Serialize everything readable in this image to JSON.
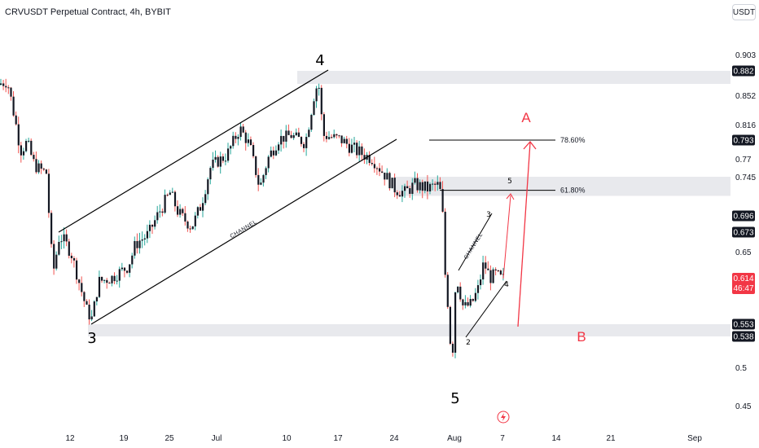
{
  "header": {
    "title": "CRVUSDT Perpetual Contract, 4h, BYBIT",
    "currency": "USDT"
  },
  "chart_data": {
    "type": "candlestick",
    "title": "CRVUSDT Perpetual Contract, 4h, BYBIT",
    "x_ticks": [
      "12",
      "19",
      "25",
      "Jul",
      "10",
      "17",
      "24",
      "Aug",
      "7",
      "14",
      "21",
      "Sep"
    ],
    "y_ticks": [
      0.903,
      0.852,
      0.816,
      0.77,
      0.745,
      0.65,
      0.5,
      0.45
    ],
    "price_labels": [
      {
        "value": "0.882",
        "style": "dark"
      },
      {
        "value": "0.793",
        "style": "dark"
      },
      {
        "value": "0.696",
        "style": "dark"
      },
      {
        "value": "0.673",
        "style": "dark"
      },
      {
        "value": "0.614",
        "sub": "46:47",
        "style": "current"
      },
      {
        "value": "0.553",
        "style": "dark"
      },
      {
        "value": "0.538",
        "style": "dark"
      }
    ],
    "fib_levels": [
      {
        "label": "78.60%",
        "price": 0.793
      },
      {
        "label": "61.80%",
        "price": 0.728
      }
    ],
    "zones": [
      {
        "from": 0.866,
        "to": 0.882
      },
      {
        "from": 0.721,
        "to": 0.745
      },
      {
        "from": 0.538,
        "to": 0.553
      }
    ],
    "wave_labels": [
      {
        "text": "3",
        "price": 0.538
      },
      {
        "text": "4",
        "price": 0.89
      },
      {
        "text": "5",
        "price": 0.47
      }
    ],
    "sub_wave_labels": [
      "2",
      "3",
      "4",
      "5"
    ],
    "annotations": [
      "CHANNEL",
      "CHANNEL"
    ],
    "projection_labels": [
      {
        "text": "A",
        "price": 0.835
      },
      {
        "text": "B",
        "price": 0.535
      }
    ],
    "last_price": 0.614,
    "colors": {
      "up": "#26a69a",
      "down": "#ef5350",
      "candle_body": "#131722",
      "zone": "#e8e9ed",
      "projection": "#f23645",
      "label_bg": "#131722",
      "current_bg": "#f23645"
    }
  }
}
